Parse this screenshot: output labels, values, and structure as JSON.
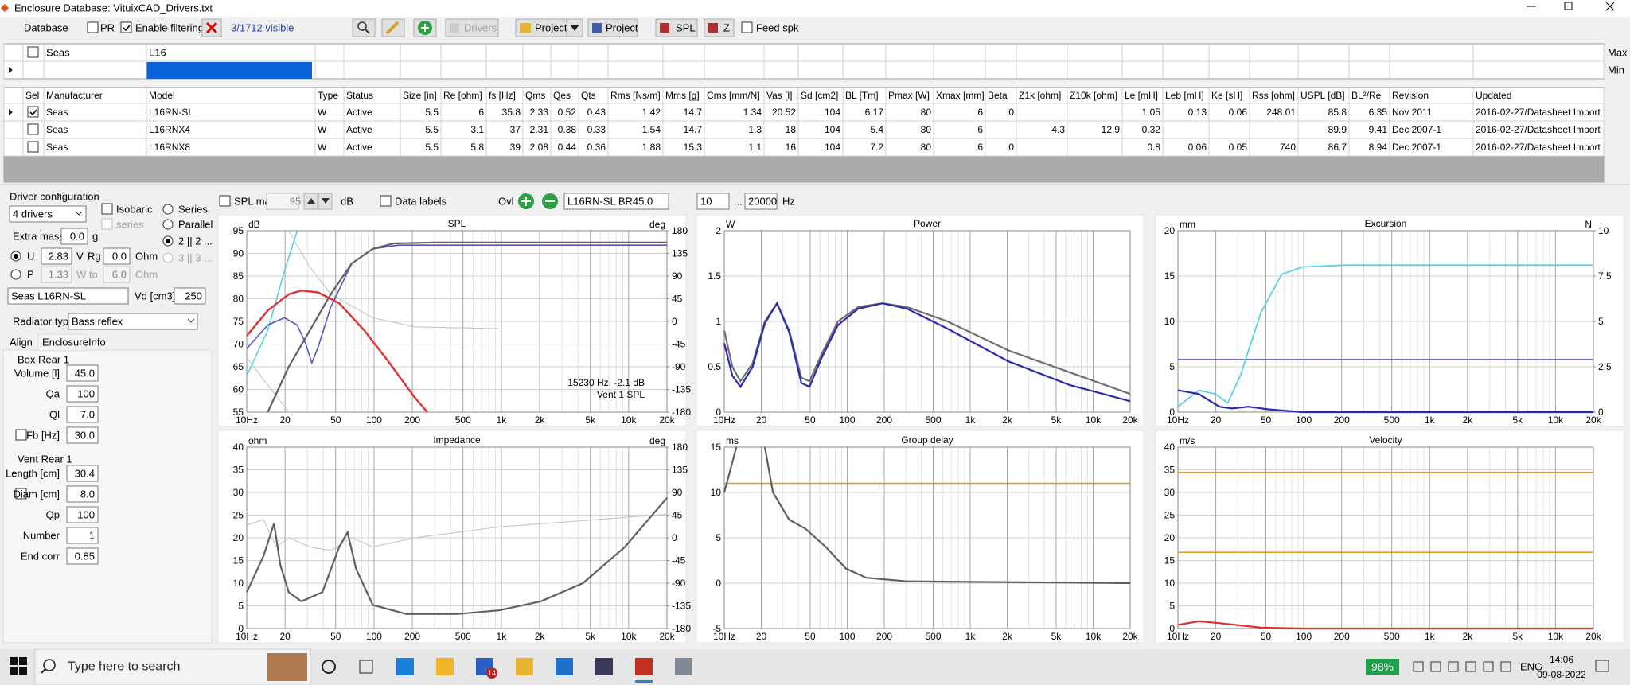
{
  "window": {
    "title": "Enclosure  Database: VituixCAD_Drivers.txt"
  },
  "toolbar": {
    "database": "Database",
    "pr": "PR",
    "enable_filtering": "Enable filtering",
    "visible": "3/1712 visible",
    "drivers": "Drivers",
    "project1": "Project",
    "project2": "Project",
    "spl": "SPL",
    "z": "Z",
    "feed_spk": "Feed spk"
  },
  "filter": {
    "manufacturer": "Seas",
    "model": "L16",
    "max": "Max",
    "min": "Min"
  },
  "table": {
    "columns": [
      "Sel",
      "Manufacturer",
      "Model",
      "Type",
      "Status",
      "Size [in]",
      "Re [ohm]",
      "fs [Hz]",
      "Qms",
      "Qes",
      "Qts",
      "Rms [Ns/m]",
      "Mms [g]",
      "Cms [mm/N]",
      "Vas [l]",
      "Sd [cm2]",
      "BL [Tm]",
      "Pmax [W]",
      "Xmax [mm]",
      "Beta",
      "Z1k [ohm]",
      "Z10k [ohm]",
      "Le [mH]",
      "Leb [mH]",
      "Ke [sH]",
      "Rss [ohm]",
      "USPL [dB]",
      "BL²/Re",
      "Revision",
      "Updated"
    ],
    "selected": [
      true,
      false,
      false
    ],
    "rows": [
      [
        "Seas",
        "L16RN-SL",
        "W",
        "Active",
        5.5,
        6,
        35.8,
        2.33,
        0.52,
        0.43,
        1.42,
        14.7,
        1.34,
        20.52,
        104,
        6.17,
        80,
        6,
        0,
        null,
        null,
        1.05,
        0.13,
        0.06,
        248.01,
        85.8,
        6.35,
        "Nov 2011",
        "2016-02-27/Datasheet Import"
      ],
      [
        "Seas",
        "L16RNX4",
        "W",
        "Active",
        5.5,
        3.1,
        37,
        2.31,
        0.38,
        0.33,
        1.54,
        14.7,
        1.3,
        18,
        104,
        5.4,
        80,
        6,
        null,
        4.3,
        12.9,
        0.32,
        null,
        null,
        null,
        89.9,
        9.41,
        "Dec 2007-1",
        "2016-02-27/Datasheet Import"
      ],
      [
        "Seas",
        "L16RNX8",
        "W",
        "Active",
        5.5,
        5.8,
        39,
        2.08,
        0.44,
        0.36,
        1.88,
        15.3,
        1.1,
        16,
        104,
        7.2,
        80,
        6,
        0,
        null,
        null,
        0.8,
        0.06,
        0.05,
        740,
        86.7,
        8.94,
        "Dec 2007-1",
        "2016-02-27/Datasheet Import"
      ]
    ]
  },
  "config": {
    "title": "Driver configuration",
    "drivers": "4 drivers",
    "isobaric": "Isobaric",
    "series": "Series",
    "series_sub": "series",
    "parallel": "Parallel",
    "extra_mass": "Extra mass",
    "extra_mass_value": "0.0",
    "g": "g",
    "p22": "2 || 2 ...",
    "u": "U",
    "u_value": "2.83",
    "v": "V",
    "rg": "Rg",
    "rg_value": "0.0",
    "ohm1": "Ohm",
    "p33": "3 || 3 ...",
    "p": "P",
    "p_value": "1.33",
    "w_to": "W to",
    "w_to_value": "6.0",
    "ohm2": "Ohm",
    "driver": "Seas L16RN-SL",
    "vd": "Vd [cm3]",
    "vd_value": 250,
    "radiator_type": "Radiator type",
    "radiator": "Bass reflex",
    "tabs": [
      "Align",
      "Enclosure",
      "Info"
    ],
    "box_title": "Box Rear 1",
    "box_fields": [
      [
        "Volume [l]",
        "45.0"
      ],
      [
        "Qa",
        100
      ],
      [
        "Ql",
        "7.0"
      ],
      [
        "Fb [Hz]",
        "30.0"
      ]
    ],
    "vent_title": "Vent Rear 1",
    "vent_fields": [
      [
        "Length [cm]",
        "30.4"
      ],
      [
        "Diam [cm]",
        "8.0"
      ],
      [
        "Qp",
        100
      ],
      [
        "Number",
        1
      ],
      [
        "End corr",
        0.85
      ]
    ]
  },
  "graph_bar": {
    "spl_max": "SPL max",
    "spl_max_value": 95,
    "db": "dB",
    "data_labels": "Data labels",
    "ovl": "Ovl",
    "overlay": "L16RN-SL BR45.0",
    "f_from": 10,
    "dots": "...",
    "f_to": 20000,
    "hz": "Hz"
  },
  "graph_area": {
    "freq_ticks": [
      {
        "value": 10,
        "label": "10Hz"
      },
      20,
      50,
      100,
      200,
      500,
      {
        "value": 1000,
        "label": "1k"
      },
      {
        "value": 2000,
        "label": "2k"
      },
      {
        "value": 5000,
        "label": "5k"
      },
      {
        "value": 10000,
        "label": "10k"
      },
      {
        "value": 20000,
        "label": "20k"
      }
    ]
  },
  "graphs": [
    {
      "title": "SPL",
      "unit_left": "dB",
      "unit_right": "deg",
      "ylim": [
        55,
        95
      ],
      "yticks": [
        95,
        90,
        85,
        80,
        75,
        70,
        65,
        60,
        55
      ],
      "y2lim": [
        -180,
        180
      ],
      "y2ticks": [
        180,
        135,
        90,
        45,
        0,
        -45,
        -90,
        -135,
        -180
      ],
      "annotation": [
        "15230 Hz, -2.1 dB",
        "Vent 1 SPL"
      ]
    },
    {
      "title": "Power",
      "unit_left": "W",
      "ylim": [
        0,
        2
      ],
      "yticks": [
        2,
        1.5,
        1,
        0.5,
        0
      ]
    },
    {
      "title": "Excursion",
      "unit_left": "mm",
      "unit_right": "N",
      "ylim": [
        0,
        20
      ],
      "yticks": [
        20,
        15,
        10,
        5,
        0
      ],
      "y2lim": [
        0,
        10
      ],
      "y2ticks": [
        10,
        7.5,
        5,
        2.5,
        0
      ]
    },
    {
      "title": "Impedance",
      "unit_left": "ohm",
      "unit_right": "deg",
      "ylim": [
        0,
        40
      ],
      "yticks": [
        40,
        35,
        30,
        25,
        20,
        15,
        10,
        5,
        0
      ],
      "y2lim": [
        -180,
        180
      ],
      "y2ticks": [
        180,
        135,
        90,
        45,
        0,
        -45,
        -90,
        -135,
        -180
      ]
    },
    {
      "title": "Group delay",
      "unit_left": "ms",
      "ylim": [
        -5,
        15
      ],
      "yticks": [
        15,
        10,
        5,
        0,
        -5
      ]
    },
    {
      "title": "Velocity",
      "unit_left": "m/s",
      "ylim": [
        0,
        40
      ],
      "yticks": [
        40,
        35,
        30,
        25,
        20,
        15,
        10,
        5,
        0
      ]
    }
  ],
  "taskbar": {
    "search": "Type here to search",
    "mail_badge": "14",
    "battery": "98%",
    "language": "ENG",
    "time": "14:06",
    "date": "09-08-2022"
  }
}
